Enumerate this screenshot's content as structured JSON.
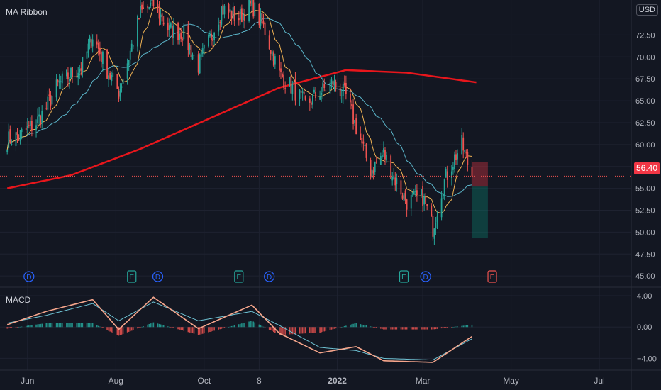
{
  "indicator_main": "MA Ribbon",
  "indicator_sub": "MACD",
  "currency": "USD",
  "last_price": "56.40",
  "colors": {
    "background": "#131722",
    "up": "#26a69a",
    "down": "#ef5350",
    "ma_fast": "#f0b354",
    "ma_mid": "#5bb5c9",
    "ma_slow": "#e8161c",
    "macd": "#f6a68c",
    "signal": "#6fc3d4"
  },
  "chart_data": [
    {
      "type": "candlestick",
      "title": "MA Ribbon",
      "y_ticks": [
        "72.50",
        "70.00",
        "67.50",
        "65.00",
        "62.50",
        "60.00",
        "57.50",
        "55.00",
        "52.50",
        "50.00",
        "47.50",
        "45.00"
      ],
      "ylim": [
        43.8,
        76.5
      ],
      "x_ticks": [
        "Jun",
        "Aug",
        "Oct",
        "8",
        "2022",
        "Mar",
        "May",
        "Jul"
      ],
      "series": [
        {
          "name": "close",
          "values": [
            {
              "x": "2021-05-18",
              "y": 60.5
            },
            {
              "x": "2021-05-28",
              "y": 61.2
            },
            {
              "x": "2021-06-07",
              "y": 62.5
            },
            {
              "x": "2021-06-14",
              "y": 64.2
            },
            {
              "x": "2021-06-22",
              "y": 66.8
            },
            {
              "x": "2021-07-01",
              "y": 68.0
            },
            {
              "x": "2021-07-09",
              "y": 69.0
            },
            {
              "x": "2021-07-16",
              "y": 72.5
            },
            {
              "x": "2021-07-26",
              "y": 68.5
            },
            {
              "x": "2021-08-03",
              "y": 66.0
            },
            {
              "x": "2021-08-10",
              "y": 70.0
            },
            {
              "x": "2021-08-18",
              "y": 75.0
            },
            {
              "x": "2021-08-27",
              "y": 76.0
            },
            {
              "x": "2021-09-07",
              "y": 73.0
            },
            {
              "x": "2021-09-16",
              "y": 72.8
            },
            {
              "x": "2021-09-27",
              "y": 69.0
            },
            {
              "x": "2021-10-05",
              "y": 72.0
            },
            {
              "x": "2021-10-13",
              "y": 75.5
            },
            {
              "x": "2021-10-25",
              "y": 74.5
            },
            {
              "x": "2021-11-03",
              "y": 76.0
            },
            {
              "x": "2021-11-12",
              "y": 73.0
            },
            {
              "x": "2021-11-22",
              "y": 68.0
            },
            {
              "x": "2021-12-01",
              "y": 66.5
            },
            {
              "x": "2021-12-10",
              "y": 64.5
            },
            {
              "x": "2021-12-20",
              "y": 66.0
            },
            {
              "x": "2021-12-29",
              "y": 67.0
            },
            {
              "x": "2022-01-07",
              "y": 65.5
            },
            {
              "x": "2022-01-14",
              "y": 62.0
            },
            {
              "x": "2022-01-24",
              "y": 57.0
            },
            {
              "x": "2022-02-02",
              "y": 59.0
            },
            {
              "x": "2022-02-10",
              "y": 56.0
            },
            {
              "x": "2022-02-18",
              "y": 53.5
            },
            {
              "x": "2022-03-01",
              "y": 54.0
            },
            {
              "x": "2022-03-08",
              "y": 50.5
            },
            {
              "x": "2022-03-15",
              "y": 55.5
            },
            {
              "x": "2022-03-23",
              "y": 58.5
            },
            {
              "x": "2022-03-28",
              "y": 60.0
            },
            {
              "x": "2022-04-04",
              "y": 56.4
            }
          ]
        },
        {
          "name": "ma_slow",
          "values": [
            {
              "x": "2021-05-18",
              "y": 55.0
            },
            {
              "x": "2021-07-01",
              "y": 56.5
            },
            {
              "x": "2021-08-18",
              "y": 59.5
            },
            {
              "x": "2021-10-05",
              "y": 63.0
            },
            {
              "x": "2021-11-22",
              "y": 66.5
            },
            {
              "x": "2022-01-07",
              "y": 68.5
            },
            {
              "x": "2022-02-18",
              "y": 68.2
            },
            {
              "x": "2022-04-07",
              "y": 67.1
            }
          ]
        }
      ]
    },
    {
      "type": "macd",
      "title": "MACD",
      "y_ticks": [
        "4.00",
        "0.00",
        "−4.00"
      ],
      "ylim": [
        -5.5,
        5.0
      ],
      "series": [
        {
          "name": "macd",
          "values": [
            {
              "x": "2021-05-18",
              "y": 0.3
            },
            {
              "x": "2021-06-14",
              "y": 2.0
            },
            {
              "x": "2021-07-16",
              "y": 3.5
            },
            {
              "x": "2021-08-03",
              "y": -0.3
            },
            {
              "x": "2021-08-27",
              "y": 3.8
            },
            {
              "x": "2021-09-27",
              "y": -0.2
            },
            {
              "x": "2021-11-03",
              "y": 2.8
            },
            {
              "x": "2021-11-22",
              "y": -0.8
            },
            {
              "x": "2021-12-20",
              "y": -3.3
            },
            {
              "x": "2022-01-14",
              "y": -2.5
            },
            {
              "x": "2022-02-02",
              "y": -4.3
            },
            {
              "x": "2022-03-08",
              "y": -4.5
            },
            {
              "x": "2022-04-04",
              "y": -1.2
            }
          ]
        },
        {
          "name": "signal",
          "values": [
            {
              "x": "2021-05-18",
              "y": 0.5
            },
            {
              "x": "2021-06-14",
              "y": 1.5
            },
            {
              "x": "2021-07-16",
              "y": 3.0
            },
            {
              "x": "2021-08-03",
              "y": 0.8
            },
            {
              "x": "2021-08-27",
              "y": 3.2
            },
            {
              "x": "2021-09-27",
              "y": 0.8
            },
            {
              "x": "2021-11-03",
              "y": 2.0
            },
            {
              "x": "2021-11-22",
              "y": 0.2
            },
            {
              "x": "2021-12-20",
              "y": -2.6
            },
            {
              "x": "2022-01-14",
              "y": -3.0
            },
            {
              "x": "2022-02-02",
              "y": -4.0
            },
            {
              "x": "2022-03-08",
              "y": -4.2
            },
            {
              "x": "2022-04-04",
              "y": -1.5
            }
          ]
        }
      ]
    }
  ],
  "events": [
    {
      "label": "D",
      "color": "#2962ff"
    },
    {
      "label": "E",
      "color": "#26a69a"
    },
    {
      "label": "D",
      "color": "#2962ff"
    },
    {
      "label": "E",
      "color": "#26a69a"
    },
    {
      "label": "D",
      "color": "#2962ff"
    },
    {
      "label": "E",
      "color": "#26a69a"
    },
    {
      "label": "D",
      "color": "#2962ff"
    },
    {
      "label": "E",
      "color": "#ef5350"
    }
  ]
}
